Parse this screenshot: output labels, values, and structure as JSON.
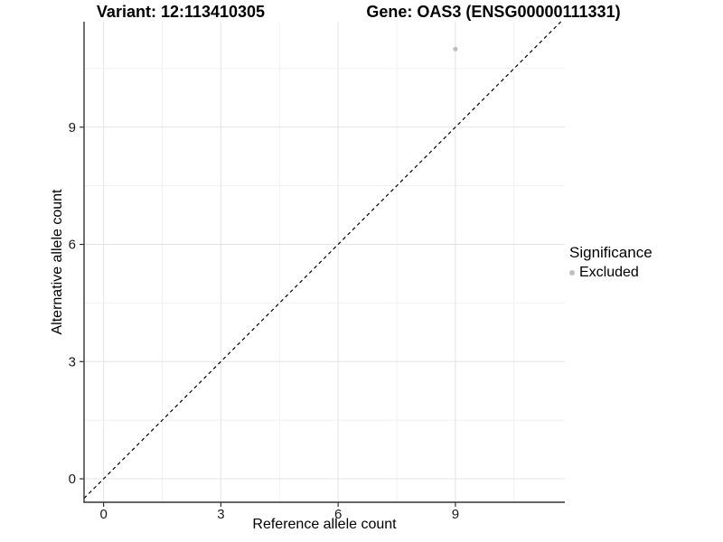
{
  "titles": {
    "variant": "Variant: 12:113410305",
    "gene": "Gene: OAS3 (ENSG00000111331)"
  },
  "legend": {
    "title": "Significance",
    "items": [
      {
        "label": "Excluded",
        "color": "#bfbfbf"
      }
    ]
  },
  "chart_data": {
    "type": "scatter",
    "title_left": "Variant: 12:113410305",
    "title_right": "Gene: OAS3 (ENSG00000111331)",
    "xlabel": "Reference allele count",
    "ylabel": "Alternative allele count",
    "xlim": [
      -0.5,
      11.8
    ],
    "ylim": [
      -0.6,
      11.7
    ],
    "x_ticks": [
      0,
      3,
      6,
      9
    ],
    "y_ticks": [
      0,
      3,
      6,
      9
    ],
    "x_minor_gridlines": [
      1.5,
      4.5,
      7.5,
      10.5
    ],
    "y_minor_gridlines": [
      1.5,
      4.5,
      7.5,
      10.5
    ],
    "grid": true,
    "legend_position": "right",
    "series": [
      {
        "name": "Excluded",
        "color": "#bfbfbf",
        "points": [
          {
            "x": 9,
            "y": 11
          }
        ]
      }
    ],
    "reference_line": {
      "kind": "identity",
      "equation": "y = x",
      "style": "dashed",
      "color": "#000000"
    },
    "colors": {
      "background": "#ffffff",
      "grid_major": "#e4e4e4",
      "grid_minor": "#f1f1f1",
      "axis_line": "#333333",
      "tick_mark": "#333333",
      "tick_text": "#1a1a1a"
    }
  }
}
